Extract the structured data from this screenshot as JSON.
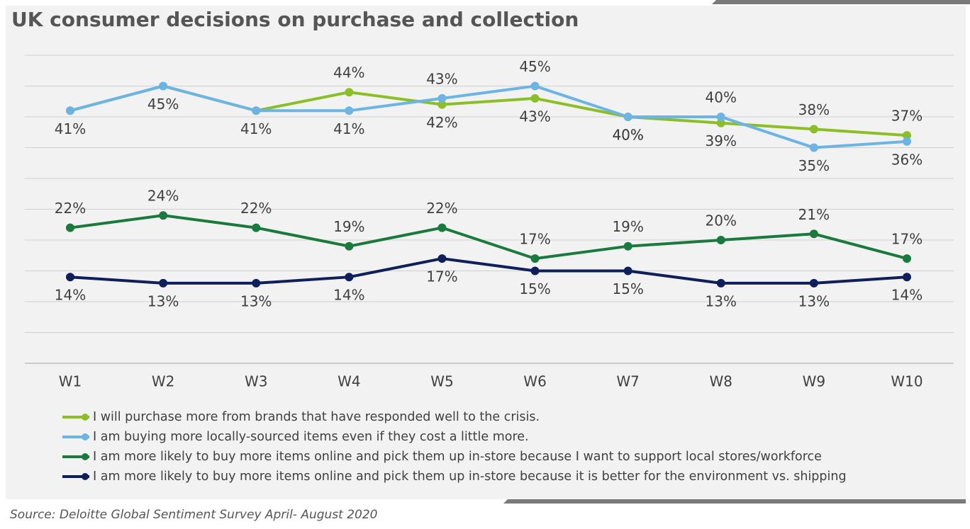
{
  "chart_data": {
    "type": "line",
    "title": "UK consumer decisions on purchase and collection",
    "source": "Source: Deloitte Global Sentiment Survey April- August 2020",
    "categories": [
      "W1",
      "W2",
      "W3",
      "W4",
      "W5",
      "W6",
      "W7",
      "W8",
      "W9",
      "W10"
    ],
    "ylim": [
      0,
      50
    ],
    "yticks": [
      0,
      5,
      10,
      15,
      20,
      25,
      30,
      35,
      40,
      45,
      50
    ],
    "grid": true,
    "series": [
      {
        "name": "I will purchase more from brands that have responded well to the crisis.",
        "color": "#8cbf26",
        "values": [
          41,
          45,
          41,
          44,
          42,
          43,
          40,
          39,
          38,
          37
        ],
        "value_labels": [
          "41%",
          "45%",
          "41%",
          "44%",
          "42%",
          "43%",
          "40%",
          "39%",
          "38%",
          "37%"
        ]
      },
      {
        "name": "I am buying more locally-sourced items even if they cost a little more.",
        "color": "#6cb4e4",
        "values": [
          41,
          45,
          41,
          41,
          43,
          45,
          40,
          40,
          35,
          36
        ],
        "value_labels": [
          null,
          null,
          null,
          "41%",
          "43%",
          "45%",
          "40%",
          "40%",
          "35%",
          "36%"
        ]
      },
      {
        "name": "I am more likely to buy more items online and pick them up in-store because I want to support local stores/workforce",
        "color": "#1a7a3e",
        "values": [
          22,
          24,
          22,
          19,
          22,
          17,
          19,
          20,
          21,
          17
        ],
        "value_labels": [
          "22%",
          "24%",
          "22%",
          "19%",
          "22%",
          "17%",
          "19%",
          "20%",
          "21%",
          "17%"
        ]
      },
      {
        "name": "I am more likely to buy more items online and pick them up in-store because it is better for the environment vs. shipping",
        "color": "#0f1f5c",
        "values": [
          14,
          13,
          13,
          14,
          17,
          15,
          15,
          13,
          13,
          14
        ],
        "value_labels": [
          "14%",
          "13%",
          "13%",
          "14%",
          "17%",
          "15%",
          "15%",
          "13%",
          "13%",
          "14%"
        ]
      }
    ]
  }
}
